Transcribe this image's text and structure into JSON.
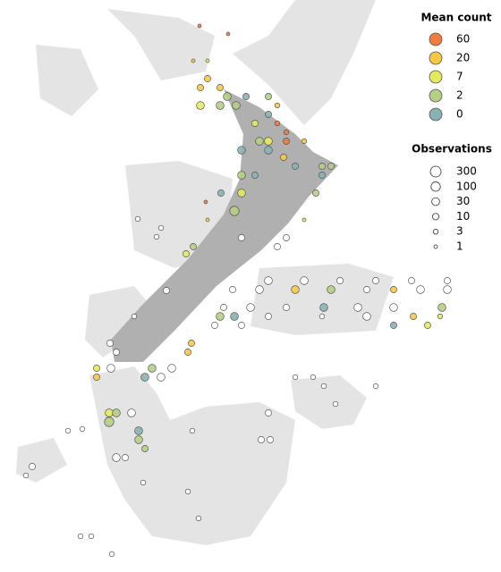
{
  "chart_data": {
    "type": "bubble-map",
    "xlim": [
      165,
      179
    ],
    "ylim": [
      -33,
      -49
    ],
    "legend_color": {
      "title": "Mean count",
      "values": [
        60,
        20,
        7,
        2,
        0
      ],
      "colors": [
        "#f07b3f",
        "#f6c945",
        "#e5ea5d",
        "#b5cf83",
        "#88b2b4"
      ]
    },
    "legend_size": {
      "title": "Observations",
      "values": [
        300,
        100,
        30,
        10,
        3,
        1
      ]
    },
    "no_data_color": "#ffffff",
    "points": {
      "lon": [
        170.575,
        171.375,
        170.4,
        170.8,
        170.8,
        170.6,
        171.15,
        171.35,
        170.6,
        171.15,
        171.6,
        171.875,
        172.5,
        172.75,
        172.5,
        172.125,
        172.75,
        173,
        172.25,
        172.5,
        173,
        173.5,
        171.75,
        172.5,
        172.925,
        173.25,
        174,
        174.25,
        171.75,
        172.125,
        174,
        171.175,
        171.75,
        173.825,
        170.75,
        171.55,
        170.8,
        173.5,
        170.2,
        170.4,
        172.5,
        173.5,
        174.5,
        175.5,
        176.5,
        177.5,
        171.5,
        172.25,
        173.25,
        174.25,
        175.25,
        176,
        176.75,
        177.5,
        171.25,
        172,
        173,
        174.05,
        175,
        176,
        177.35,
        171.15,
        171.55,
        172.5,
        174,
        175.25,
        176.55,
        177.3,
        176,
        176.95,
        171,
        171.75,
        168.075,
        168.25,
        167.7,
        167.7,
        168.1,
        169.25,
        169.8,
        169.05,
        169.5,
        170.35,
        170.25,
        168.05,
        168.25,
        168.05,
        168.675,
        168.875,
        168.875,
        169.05,
        168.25,
        168.5,
        165.9,
        165.725,
        166.9,
        167.3,
        172.3,
        172.55,
        172.5,
        173.25,
        173.75,
        174.05,
        175.5,
        174.375,
        170.375,
        169,
        170.25,
        170.55,
        167.25,
        168.125,
        167.55,
        168.85,
        169.5,
        169.375,
        173,
        172.75,
        171.75,
        169.65,
        168.75
      ],
      "lat": [
        -33.725,
        -33.95,
        -34.7,
        -34.7,
        -35.2,
        -35.45,
        -35.45,
        -35.7,
        -35.95,
        -35.95,
        -35.95,
        -35.7,
        -35.7,
        -35.95,
        -36.2,
        -36.45,
        -36.45,
        -36.7,
        -36.95,
        -36.95,
        -36.95,
        -36.95,
        -37.2,
        -37.2,
        -37.4,
        -37.65,
        -37.65,
        -37.65,
        -37.9,
        -37.9,
        -37.9,
        -38.4,
        -38.4,
        -38.4,
        -38.65,
        -38.9,
        -39.15,
        -39.15,
        -40.1,
        -39.9,
        -40.85,
        -40.85,
        -40.85,
        -40.85,
        -40.85,
        -40.85,
        -41.1,
        -41.1,
        -41.1,
        -41.1,
        -41.1,
        -41.1,
        -41.1,
        -41.1,
        -41.6,
        -41.6,
        -41.6,
        -41.6,
        -41.6,
        -41.6,
        -41.6,
        -41.85,
        -41.85,
        -41.85,
        -41.85,
        -41.85,
        -41.85,
        -41.85,
        -42.1,
        -42.1,
        -42.1,
        -42.1,
        -42.6,
        -42.85,
        -43.3,
        -43.55,
        -43.3,
        -43.3,
        -43.3,
        -43.55,
        -43.55,
        -42.6,
        -42.85,
        -44.55,
        -44.55,
        -44.8,
        -44.55,
        -45.05,
        -45.3,
        -45.55,
        -45.8,
        -45.8,
        -46.05,
        -46.3,
        -45.05,
        -45,
        -45.3,
        -45.3,
        -44.55,
        -43.55,
        -43.55,
        -43.8,
        -43.8,
        -44.3,
        -45.05,
        -46.5,
        -46.75,
        -47.5,
        -48,
        -48.5,
        -48,
        -39.125,
        -39.375,
        -39.625,
        -39.65,
        -39.9,
        -39.65,
        -41.125,
        -41.85
      ],
      "mean_count": [
        40,
        40,
        15,
        7,
        20,
        15,
        30,
        2,
        4,
        2,
        2,
        0,
        3,
        20,
        0,
        10,
        40,
        60,
        2,
        4,
        40,
        15,
        0,
        0,
        30,
        0,
        2,
        2,
        2,
        0,
        0,
        0,
        4,
        2,
        40,
        2,
        20,
        7,
        7,
        3,
        null,
        null,
        null,
        null,
        null,
        null,
        null,
        null,
        20,
        2,
        null,
        15,
        null,
        null,
        null,
        null,
        null,
        0,
        null,
        null,
        2,
        2,
        0,
        null,
        null,
        null,
        20,
        10,
        0,
        4,
        null,
        null,
        null,
        null,
        10,
        15,
        null,
        2,
        null,
        0,
        null,
        20,
        15,
        4,
        2,
        2,
        null,
        0,
        2,
        2,
        null,
        null,
        null,
        null,
        null,
        null,
        null,
        null,
        null,
        null,
        null,
        null,
        null,
        null,
        null,
        null,
        null,
        null,
        null,
        null,
        null,
        null,
        null,
        null,
        null,
        null,
        null,
        null
      ],
      "observations": [
        1,
        1,
        1,
        1,
        10,
        10,
        10,
        30,
        30,
        30,
        30,
        10,
        10,
        3,
        10,
        10,
        3,
        3,
        30,
        30,
        10,
        3,
        30,
        30,
        10,
        10,
        10,
        10,
        30,
        10,
        10,
        10,
        30,
        10,
        1,
        100,
        1,
        1,
        10,
        10,
        30,
        30,
        10,
        10,
        10,
        10,
        10,
        30,
        30,
        30,
        10,
        10,
        30,
        30,
        10,
        30,
        10,
        30,
        30,
        30,
        30,
        30,
        30,
        10,
        3,
        30,
        10,
        3,
        10,
        10,
        10,
        10,
        10,
        10,
        10,
        10,
        30,
        30,
        30,
        30,
        30,
        10,
        10,
        30,
        30,
        100,
        30,
        30,
        30,
        10,
        30,
        10,
        10,
        3,
        3,
        3,
        10,
        10,
        10,
        3,
        3,
        3,
        3,
        3,
        3,
        3,
        3,
        3,
        3,
        3,
        3,
        3,
        3,
        3,
        10,
        10,
        10,
        10,
        3
      ]
    }
  }
}
